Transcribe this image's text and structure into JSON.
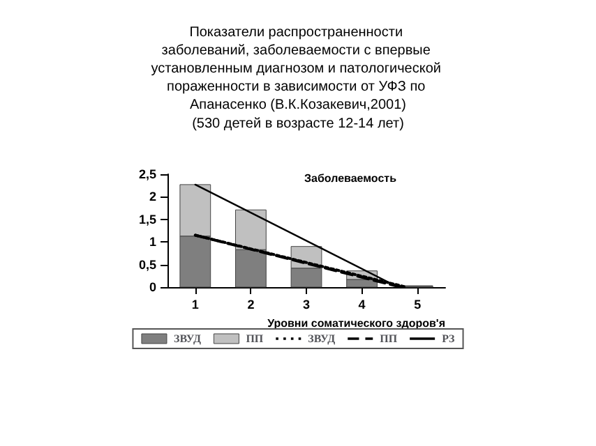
{
  "chart_data": {
    "type": "bar",
    "title": "Показатели распространенности заболеваний, заболеваемости с впервые установленным диагнозом и патологической пораженности в зависимости от УФЗ по Апанасенко (В.К.Козакевич,2001)",
    "subtitle": "(530 детей в возрасте 12-14 лет)",
    "xlabel": "Уровни соматического здоров'я",
    "annotations": [
      "Заболеваемость"
    ],
    "x": [
      1,
      2,
      3,
      4,
      5
    ],
    "stacked": true,
    "xlim": [
      0.5,
      5.5
    ],
    "xticks": [
      1,
      2,
      3,
      4,
      5
    ],
    "ylim": [
      0,
      2.5
    ],
    "yticks": [
      0,
      {
        "value": 0.5,
        "label": "0,5"
      },
      1,
      {
        "value": 1.5,
        "label": "1,5"
      },
      2,
      {
        "value": 2.5,
        "label": "2,5"
      }
    ],
    "grid": false,
    "legend": "bottom",
    "marker": "none",
    "series": [
      {
        "name": "ЗВУД",
        "color": "#7f7f7f",
        "values": [
          1.13,
          0.83,
          0.42,
          0.17,
          0.02
        ]
      },
      {
        "name": "ПП",
        "color": "#c0c0c0",
        "values": [
          1.14,
          0.88,
          0.48,
          0.19,
          0.01
        ]
      },
      {
        "name": "ЗВУД",
        "type": "line",
        "line_style": "dotted",
        "color": "#000000",
        "x": [
          1,
          4.8
        ],
        "values": [
          1.15,
          0
        ]
      },
      {
        "name": "ПП",
        "type": "line",
        "line_style": "dashed",
        "color": "#000000",
        "x": [
          1,
          4.7
        ],
        "values": [
          1.15,
          0
        ]
      },
      {
        "name": "РЗ",
        "type": "line",
        "line_style": "solid",
        "color": "#000000",
        "x": [
          1,
          4.65
        ],
        "values": [
          2.27,
          0
        ]
      }
    ]
  }
}
